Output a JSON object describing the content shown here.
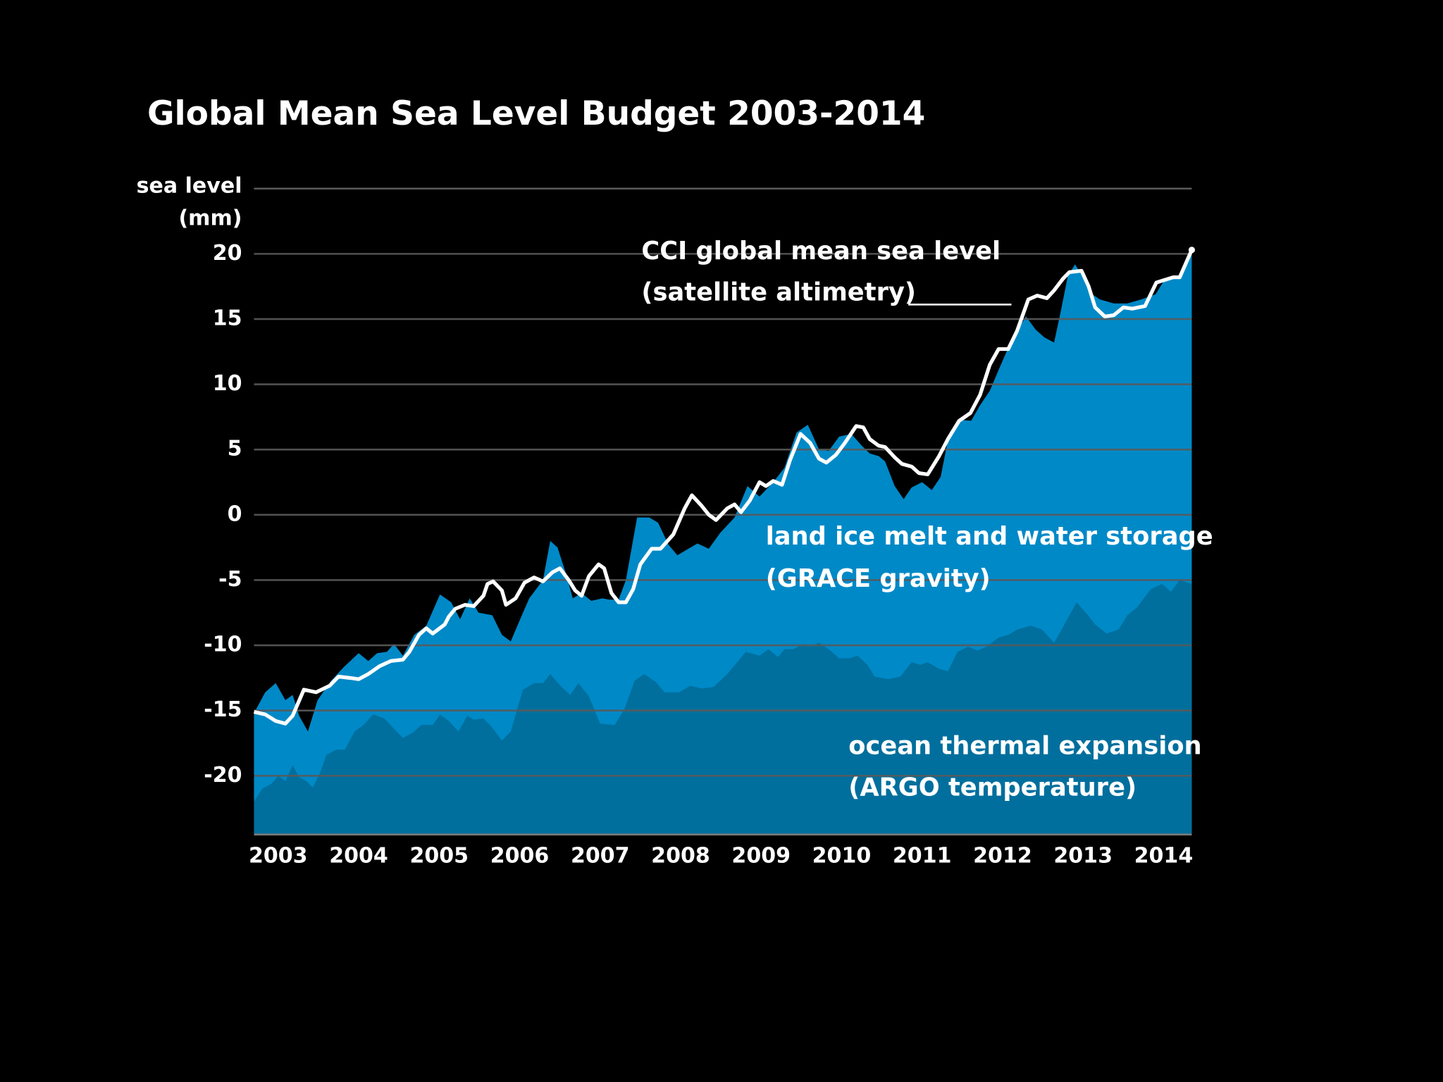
{
  "chart_data": {
    "type": "area",
    "title": "Global Mean Sea Level Budget 2003-2014",
    "ylabel": [
      "sea level",
      "(mm)"
    ],
    "xlim": [
      2002.7,
      2014.35
    ],
    "xticks": [
      2003,
      2004,
      2005,
      2006,
      2007,
      2008,
      2009,
      2010,
      2011,
      2012,
      2013,
      2014
    ],
    "ylim": [
      -24.5,
      25
    ],
    "yticks": [
      -20,
      -15,
      -10,
      -5,
      0,
      5,
      10,
      15,
      20
    ],
    "grid": true,
    "series": [
      {
        "name": [
          "land ice melt and water storage",
          "(GRACE gravity)"
        ],
        "mark": "area",
        "color": "#0089c7",
        "x": [
          2002.7,
          2002.84,
          2002.97,
          2003.09,
          2003.18,
          2003.26,
          2003.37,
          2003.49,
          2003.66,
          2003.81,
          2004.0,
          2004.12,
          2004.23,
          2004.35,
          2004.44,
          2004.55,
          2004.69,
          2004.84,
          2005.01,
          2005.15,
          2005.26,
          2005.38,
          2005.49,
          2005.66,
          2005.78,
          2005.89,
          2006.0,
          2006.12,
          2006.29,
          2006.38,
          2006.47,
          2006.57,
          2006.66,
          2006.77,
          2006.89,
          2007.03,
          2007.11,
          2007.23,
          2007.32,
          2007.46,
          2007.61,
          2007.72,
          2007.85,
          2007.96,
          2008.07,
          2008.21,
          2008.35,
          2008.49,
          2008.67,
          2008.83,
          2008.98,
          2009.15,
          2009.29,
          2009.44,
          2009.58,
          2009.72,
          2009.84,
          2009.97,
          2010.12,
          2010.25,
          2010.35,
          2010.46,
          2010.54,
          2010.66,
          2010.77,
          2010.87,
          2011.0,
          2011.12,
          2011.23,
          2011.32,
          2011.46,
          2011.61,
          2011.72,
          2011.84,
          2011.95,
          2012.07,
          2012.18,
          2012.29,
          2012.41,
          2012.52,
          2012.64,
          2012.72,
          2012.81,
          2012.9,
          2012.98,
          2013.09,
          2013.21,
          2013.38,
          2013.55,
          2013.72,
          2013.9,
          2014.01,
          2014.18,
          2014.35
        ],
        "values": [
          -15.2,
          -13.6,
          -12.9,
          -14.2,
          -13.8,
          -15.4,
          -16.6,
          -14.2,
          -12.7,
          -11.7,
          -10.6,
          -11.2,
          -10.6,
          -10.5,
          -9.9,
          -10.8,
          -9.2,
          -8.5,
          -6.1,
          -6.7,
          -8.0,
          -6.4,
          -7.5,
          -7.7,
          -9.2,
          -9.7,
          -8.1,
          -6.4,
          -5.0,
          -2.0,
          -2.5,
          -4.4,
          -6.4,
          -6.0,
          -6.6,
          -6.4,
          -6.5,
          -6.5,
          -5.0,
          -0.2,
          -0.2,
          -0.6,
          -2.3,
          -3.1,
          -2.7,
          -2.2,
          -2.6,
          -1.4,
          -0.2,
          2.2,
          1.4,
          2.5,
          3.6,
          6.3,
          6.9,
          5.0,
          4.9,
          6.0,
          6.2,
          5.3,
          4.7,
          4.5,
          4.1,
          2.2,
          1.2,
          2.1,
          2.5,
          1.9,
          2.9,
          5.7,
          7.3,
          7.2,
          8.4,
          9.5,
          11.1,
          12.8,
          14.1,
          15.2,
          14.2,
          13.6,
          13.2,
          15.5,
          18.3,
          19.2,
          18.4,
          17.0,
          16.5,
          16.2,
          16.2,
          16.5,
          16.9,
          18.0,
          18.3,
          20.0
        ]
      },
      {
        "name": [
          "ocean thermal expansion",
          "(ARGO temperature)"
        ],
        "mark": "area",
        "color": "#006f9d",
        "x": [
          2002.7,
          2002.8,
          2002.92,
          2003.0,
          2003.09,
          2003.18,
          2003.26,
          2003.35,
          2003.43,
          2003.52,
          2003.6,
          2003.72,
          2003.83,
          2003.95,
          2004.06,
          2004.18,
          2004.32,
          2004.44,
          2004.55,
          2004.67,
          2004.78,
          2004.92,
          2005.01,
          2005.12,
          2005.24,
          2005.35,
          2005.43,
          2005.55,
          2005.66,
          2005.78,
          2005.89,
          2006.04,
          2006.18,
          2006.29,
          2006.38,
          2006.52,
          2006.63,
          2006.73,
          2006.86,
          2007.0,
          2007.18,
          2007.3,
          2007.43,
          2007.55,
          2007.69,
          2007.8,
          2007.98,
          2008.12,
          2008.26,
          2008.41,
          2008.58,
          2008.81,
          2008.98,
          2009.09,
          2009.21,
          2009.29,
          2009.4,
          2009.52,
          2009.61,
          2009.72,
          2009.84,
          2009.97,
          2010.09,
          2010.2,
          2010.32,
          2010.41,
          2010.58,
          2010.73,
          2010.87,
          2010.98,
          2011.07,
          2011.21,
          2011.32,
          2011.44,
          2011.57,
          2011.69,
          2011.8,
          2011.95,
          2012.07,
          2012.18,
          2012.35,
          2012.49,
          2012.64,
          2012.75,
          2012.92,
          2013.06,
          2013.15,
          2013.29,
          2013.44,
          2013.55,
          2013.67,
          2013.84,
          2013.98,
          2014.09,
          2014.2,
          2014.35
        ],
        "values": [
          -22.0,
          -21.0,
          -20.6,
          -20.0,
          -20.4,
          -19.2,
          -20.1,
          -20.4,
          -20.9,
          -19.8,
          -18.4,
          -18.0,
          -18.0,
          -16.6,
          -16.1,
          -15.3,
          -15.6,
          -16.4,
          -17.1,
          -16.7,
          -16.1,
          -16.1,
          -15.3,
          -15.8,
          -16.6,
          -15.4,
          -15.7,
          -15.6,
          -16.3,
          -17.3,
          -16.6,
          -13.4,
          -12.9,
          -12.9,
          -12.2,
          -13.2,
          -13.8,
          -12.9,
          -13.9,
          -16.0,
          -16.1,
          -14.9,
          -12.7,
          -12.2,
          -12.8,
          -13.6,
          -13.6,
          -13.1,
          -13.3,
          -13.2,
          -12.2,
          -10.5,
          -10.8,
          -10.3,
          -10.9,
          -10.3,
          -10.3,
          -9.9,
          -10.1,
          -9.8,
          -10.3,
          -11.0,
          -11.0,
          -10.8,
          -11.5,
          -12.4,
          -12.6,
          -12.4,
          -11.3,
          -11.5,
          -11.3,
          -11.8,
          -12.0,
          -10.5,
          -10.1,
          -10.4,
          -10.1,
          -9.4,
          -9.2,
          -8.8,
          -8.5,
          -8.8,
          -9.8,
          -8.6,
          -6.7,
          -7.7,
          -8.4,
          -9.1,
          -8.8,
          -7.7,
          -7.1,
          -5.7,
          -5.3,
          -5.9,
          -5.0,
          -5.3
        ]
      },
      {
        "name": [
          "CCI global mean sea level",
          "(satellite altimetry)"
        ],
        "mark": "line",
        "color": "#ffffff",
        "x": [
          2002.7,
          2002.84,
          2002.97,
          2003.09,
          2003.18,
          2003.32,
          2003.47,
          2003.64,
          2003.75,
          2003.89,
          2004.0,
          2004.12,
          2004.26,
          2004.4,
          2004.55,
          2004.63,
          2004.75,
          2004.84,
          2004.92,
          2005.07,
          2005.12,
          2005.2,
          2005.32,
          2005.43,
          2005.55,
          2005.6,
          2005.67,
          2005.78,
          2005.83,
          2005.95,
          2006.06,
          2006.18,
          2006.29,
          2006.41,
          2006.5,
          2006.61,
          2006.69,
          2006.77,
          2006.86,
          2006.98,
          2007.05,
          2007.14,
          2007.23,
          2007.32,
          2007.41,
          2007.5,
          2007.64,
          2007.75,
          2007.91,
          2008.05,
          2008.14,
          2008.26,
          2008.35,
          2008.44,
          2008.58,
          2008.67,
          2008.75,
          2008.86,
          2008.98,
          2009.06,
          2009.15,
          2009.26,
          2009.36,
          2009.49,
          2009.61,
          2009.72,
          2009.81,
          2009.93,
          2010.04,
          2010.18,
          2010.27,
          2010.35,
          2010.46,
          2010.54,
          2010.66,
          2010.75,
          2010.87,
          2010.96,
          2011.07,
          2011.21,
          2011.32,
          2011.46,
          2011.6,
          2011.72,
          2011.84,
          2011.95,
          2012.07,
          2012.18,
          2012.32,
          2012.43,
          2012.55,
          2012.64,
          2012.75,
          2012.83,
          2012.98,
          2013.07,
          2013.15,
          2013.27,
          2013.38,
          2013.5,
          2013.61,
          2013.77,
          2013.91,
          2014.01,
          2014.12,
          2014.2,
          2014.3,
          2014.35
        ],
        "values": [
          -15.1,
          -15.3,
          -15.8,
          -16.0,
          -15.4,
          -13.4,
          -13.6,
          -13.1,
          -12.4,
          -12.5,
          -12.6,
          -12.2,
          -11.6,
          -11.2,
          -11.1,
          -10.5,
          -9.2,
          -8.7,
          -9.1,
          -8.4,
          -7.8,
          -7.2,
          -6.9,
          -7.0,
          -6.2,
          -5.3,
          -5.1,
          -5.8,
          -6.9,
          -6.4,
          -5.2,
          -4.8,
          -5.1,
          -4.4,
          -4.1,
          -5.0,
          -5.8,
          -6.2,
          -4.7,
          -3.8,
          -4.1,
          -6.0,
          -6.7,
          -6.7,
          -5.7,
          -3.8,
          -2.6,
          -2.6,
          -1.5,
          0.5,
          1.5,
          0.7,
          0.0,
          -0.4,
          0.5,
          0.8,
          0.2,
          1.1,
          2.5,
          2.2,
          2.6,
          2.3,
          4.2,
          6.2,
          5.5,
          4.3,
          4.0,
          4.6,
          5.5,
          6.8,
          6.7,
          5.8,
          5.3,
          5.2,
          4.4,
          3.9,
          3.7,
          3.2,
          3.1,
          4.5,
          5.8,
          7.2,
          7.8,
          9.2,
          11.5,
          12.7,
          12.7,
          14.1,
          16.5,
          16.8,
          16.6,
          17.2,
          18.1,
          18.6,
          18.7,
          17.5,
          15.9,
          15.2,
          15.3,
          15.9,
          15.8,
          16.0,
          17.8,
          18.0,
          18.2,
          18.2,
          19.6,
          20.3
        ]
      }
    ]
  }
}
